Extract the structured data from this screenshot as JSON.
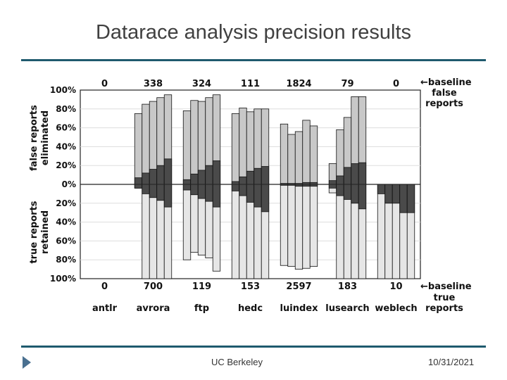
{
  "slide": {
    "title": "Datarace analysis precision results",
    "footer_center": "UC Berkeley",
    "footer_right": "10/31/2021",
    "rule_color": "#1f5a6e"
  },
  "chart_data": {
    "type": "bar",
    "subtype": "stacked-diverging",
    "ylabel_top": [
      "false reports",
      "eliminated"
    ],
    "ylabel_bottom": [
      "true reports",
      "retained"
    ],
    "yticks": [
      "100%",
      "80%",
      "60%",
      "40%",
      "20%",
      "0%",
      "20%",
      "40%",
      "60%",
      "80%",
      "100%"
    ],
    "ylim": [
      -100,
      100
    ],
    "grid": true,
    "baseline_label_top": [
      "←baseline",
      "false",
      "reports"
    ],
    "baseline_label_bottom": [
      "←baseline",
      "true",
      "reports"
    ],
    "colors": {
      "light": "#c8c8c8",
      "dark": "#4a4a4a",
      "retained": "#e6e6e6",
      "border": "#111111"
    },
    "categories": [
      {
        "name": "antlr",
        "false_reports": "0",
        "true_reports": "0",
        "bars": []
      },
      {
        "name": "avrora",
        "false_reports": "338",
        "true_reports": "700",
        "bars": [
          {
            "top": 75,
            "dark_top": 7,
            "bottom": 4,
            "dark_bottom": 4
          },
          {
            "top": 85,
            "dark_top": 12,
            "bottom": 100,
            "dark_bottom": 10
          },
          {
            "top": 88,
            "dark_top": 16,
            "bottom": 100,
            "dark_bottom": 14
          },
          {
            "top": 92,
            "dark_top": 20,
            "bottom": 100,
            "dark_bottom": 17
          },
          {
            "top": 95,
            "dark_top": 27,
            "bottom": 100,
            "dark_bottom": 24
          }
        ]
      },
      {
        "name": "ftp",
        "false_reports": "324",
        "true_reports": "119",
        "bars": [
          {
            "top": 78,
            "dark_top": 5,
            "bottom": 80,
            "dark_bottom": 6
          },
          {
            "top": 89,
            "dark_top": 11,
            "bottom": 72,
            "dark_bottom": 11
          },
          {
            "top": 88,
            "dark_top": 15,
            "bottom": 75,
            "dark_bottom": 15
          },
          {
            "top": 92,
            "dark_top": 20,
            "bottom": 78,
            "dark_bottom": 18
          },
          {
            "top": 95,
            "dark_top": 25,
            "bottom": 92,
            "dark_bottom": 24
          }
        ]
      },
      {
        "name": "hedc",
        "false_reports": "111",
        "true_reports": "153",
        "bars": [
          {
            "top": 75,
            "dark_top": 3,
            "bottom": 100,
            "dark_bottom": 7
          },
          {
            "top": 81,
            "dark_top": 8,
            "bottom": 100,
            "dark_bottom": 12
          },
          {
            "top": 77,
            "dark_top": 14,
            "bottom": 100,
            "dark_bottom": 19
          },
          {
            "top": 80,
            "dark_top": 17,
            "bottom": 100,
            "dark_bottom": 24
          },
          {
            "top": 80,
            "dark_top": 19,
            "bottom": 100,
            "dark_bottom": 29
          }
        ]
      },
      {
        "name": "luindex",
        "false_reports": "1824",
        "true_reports": "2597",
        "bars": [
          {
            "top": 64,
            "dark_top": 1,
            "bottom": 86,
            "dark_bottom": 1
          },
          {
            "top": 53,
            "dark_top": 1,
            "bottom": 87,
            "dark_bottom": 1
          },
          {
            "top": 56,
            "dark_top": 1,
            "bottom": 90,
            "dark_bottom": 2
          },
          {
            "top": 68,
            "dark_top": 2,
            "bottom": 89,
            "dark_bottom": 2
          },
          {
            "top": 62,
            "dark_top": 2,
            "bottom": 87,
            "dark_bottom": 2
          }
        ]
      },
      {
        "name": "lusearch",
        "false_reports": "79",
        "true_reports": "183",
        "bars": [
          {
            "top": 22,
            "dark_top": 4,
            "bottom": 9,
            "dark_bottom": 4
          },
          {
            "top": 58,
            "dark_top": 9,
            "bottom": 100,
            "dark_bottom": 12
          },
          {
            "top": 71,
            "dark_top": 18,
            "bottom": 100,
            "dark_bottom": 16
          },
          {
            "top": 93,
            "dark_top": 22,
            "bottom": 100,
            "dark_bottom": 20
          },
          {
            "top": 93,
            "dark_top": 23,
            "bottom": 100,
            "dark_bottom": 26
          }
        ]
      },
      {
        "name": "weblech",
        "false_reports": "0",
        "true_reports": "10",
        "bars": [
          {
            "top": 0,
            "dark_top": 0,
            "bottom": 100,
            "dark_bottom": 10
          },
          {
            "top": 0,
            "dark_top": 0,
            "bottom": 100,
            "dark_bottom": 20
          },
          {
            "top": 0,
            "dark_top": 0,
            "bottom": 100,
            "dark_bottom": 20
          },
          {
            "top": 0,
            "dark_top": 0,
            "bottom": 100,
            "dark_bottom": 30
          },
          {
            "top": 0,
            "dark_top": 0,
            "bottom": 100,
            "dark_bottom": 30
          }
        ]
      }
    ]
  }
}
